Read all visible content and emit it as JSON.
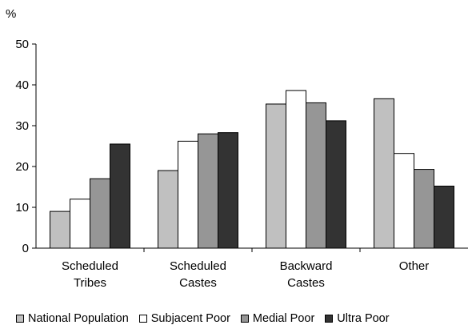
{
  "chart_data": {
    "type": "bar",
    "unit_label": "%",
    "ylim": [
      0,
      50
    ],
    "yticks": [
      "0",
      "10",
      "20",
      "30",
      "40",
      "50"
    ],
    "categories": [
      [
        "Scheduled",
        "Tribes"
      ],
      [
        "Scheduled",
        "Castes"
      ],
      [
        "Backward",
        "Castes"
      ],
      [
        "Other"
      ]
    ],
    "series": [
      {
        "name": "National Population",
        "color": "#c0c0c0",
        "values": [
          9,
          19,
          35.3,
          36.6
        ]
      },
      {
        "name": "Subjacent Poor",
        "color": "#ffffff",
        "values": [
          12,
          26.2,
          38.6,
          23.2
        ]
      },
      {
        "name": "Medial Poor",
        "color": "#969696",
        "values": [
          17,
          28,
          35.6,
          19.3
        ]
      },
      {
        "name": "Ultra Poor",
        "color": "#333333",
        "values": [
          25.5,
          28.3,
          31.2,
          15.2
        ]
      }
    ],
    "grid": false,
    "legend_position": "bottom"
  }
}
